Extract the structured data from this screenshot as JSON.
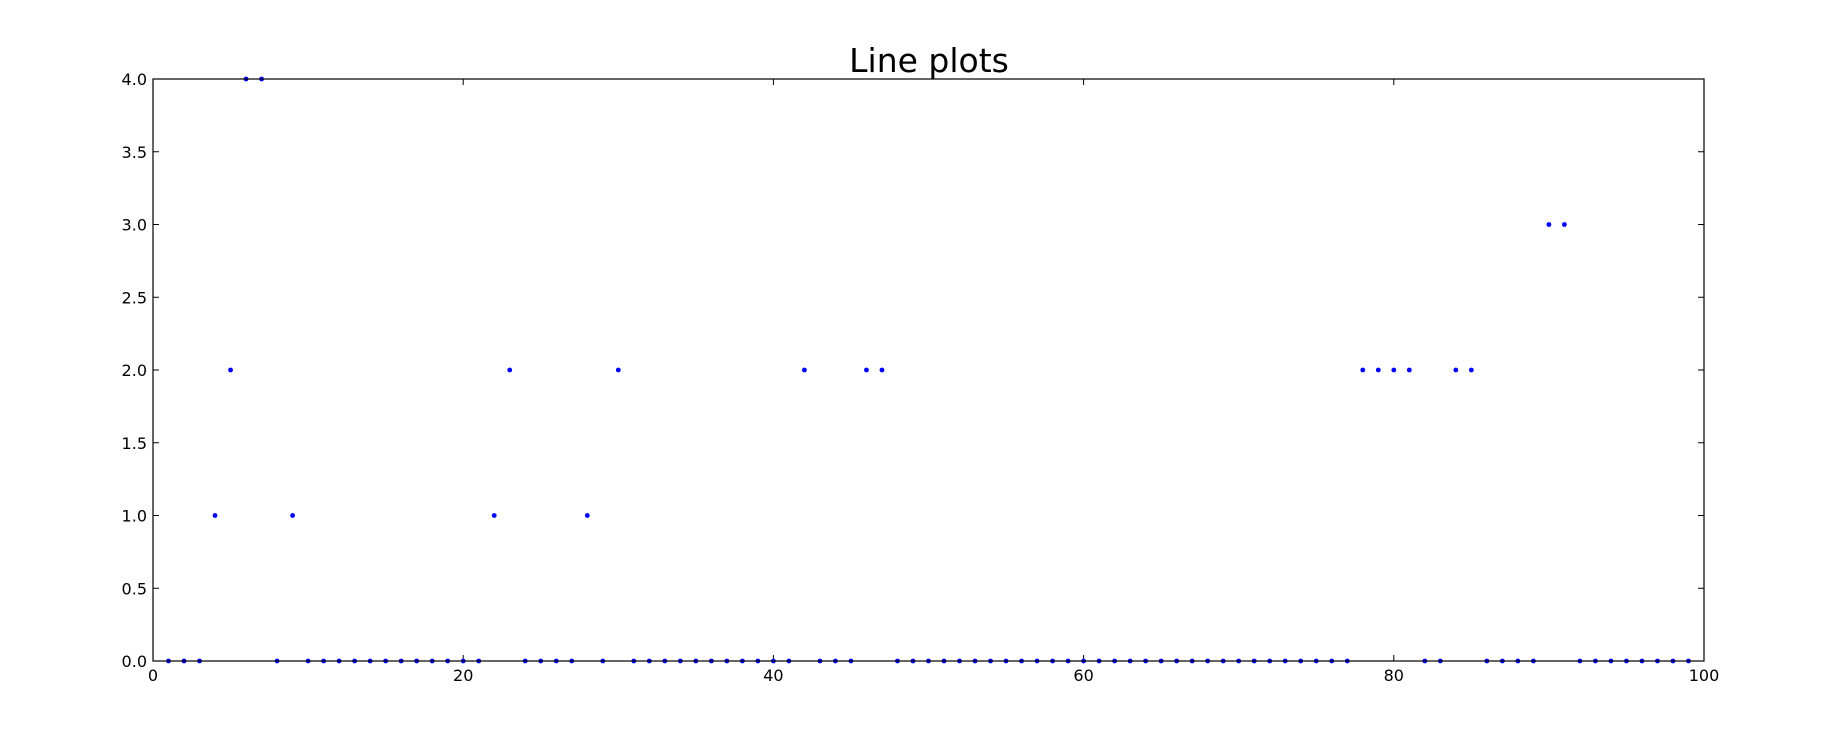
{
  "chart_data": {
    "type": "scatter",
    "title": "Line plots",
    "xlabel": "",
    "ylabel": "",
    "xlim": [
      0,
      100
    ],
    "ylim": [
      0,
      4
    ],
    "x_ticks": [
      0,
      20,
      40,
      60,
      80,
      100
    ],
    "x_tick_labels": [
      "0",
      "20",
      "40",
      "60",
      "80",
      "100"
    ],
    "y_ticks": [
      0,
      0.5,
      1,
      1.5,
      2,
      2.5,
      3,
      3.5,
      4
    ],
    "y_tick_labels": [
      "0.0",
      "0.5",
      "1.0",
      "1.5",
      "2.0",
      "2.5",
      "3.0",
      "3.5",
      "4.0"
    ],
    "grid": false,
    "legend": "none",
    "marker_color": "#0000ff",
    "series": [
      {
        "x": [
          1,
          2,
          3,
          4,
          5,
          6,
          7,
          8,
          9,
          10,
          11,
          12,
          13,
          14,
          15,
          16,
          17,
          18,
          19,
          20,
          21,
          22,
          23,
          24,
          25,
          26,
          27,
          28,
          29,
          30,
          31,
          32,
          33,
          34,
          35,
          36,
          37,
          38,
          39,
          40,
          41,
          42,
          43,
          44,
          45,
          46,
          47,
          48,
          49,
          50,
          51,
          52,
          53,
          54,
          55,
          56,
          57,
          58,
          59,
          60,
          61,
          62,
          63,
          64,
          65,
          66,
          67,
          68,
          69,
          70,
          71,
          72,
          73,
          74,
          75,
          76,
          77,
          78,
          79,
          80,
          81,
          82,
          83,
          84,
          85,
          86,
          87,
          88,
          89,
          90,
          91,
          92,
          93,
          94,
          95,
          96,
          97,
          98,
          99
        ],
        "values": [
          0,
          0,
          0,
          1,
          2,
          4,
          4,
          0,
          1,
          0,
          0,
          0,
          0,
          0,
          0,
          0,
          0,
          0,
          0,
          0,
          0,
          1,
          2,
          0,
          0,
          0,
          0,
          1,
          0,
          2,
          0,
          0,
          0,
          0,
          0,
          0,
          0,
          0,
          0,
          0,
          0,
          2,
          0,
          0,
          0,
          2,
          2,
          0,
          0,
          0,
          0,
          0,
          0,
          0,
          0,
          0,
          0,
          0,
          0,
          0,
          0,
          0,
          0,
          0,
          0,
          0,
          0,
          0,
          0,
          0,
          0,
          0,
          0,
          0,
          0,
          0,
          0,
          2,
          2,
          2,
          2,
          0,
          0,
          2,
          2,
          0,
          0,
          0,
          0,
          3,
          3,
          0,
          0,
          0,
          0,
          0,
          0,
          0,
          0
        ]
      }
    ]
  }
}
